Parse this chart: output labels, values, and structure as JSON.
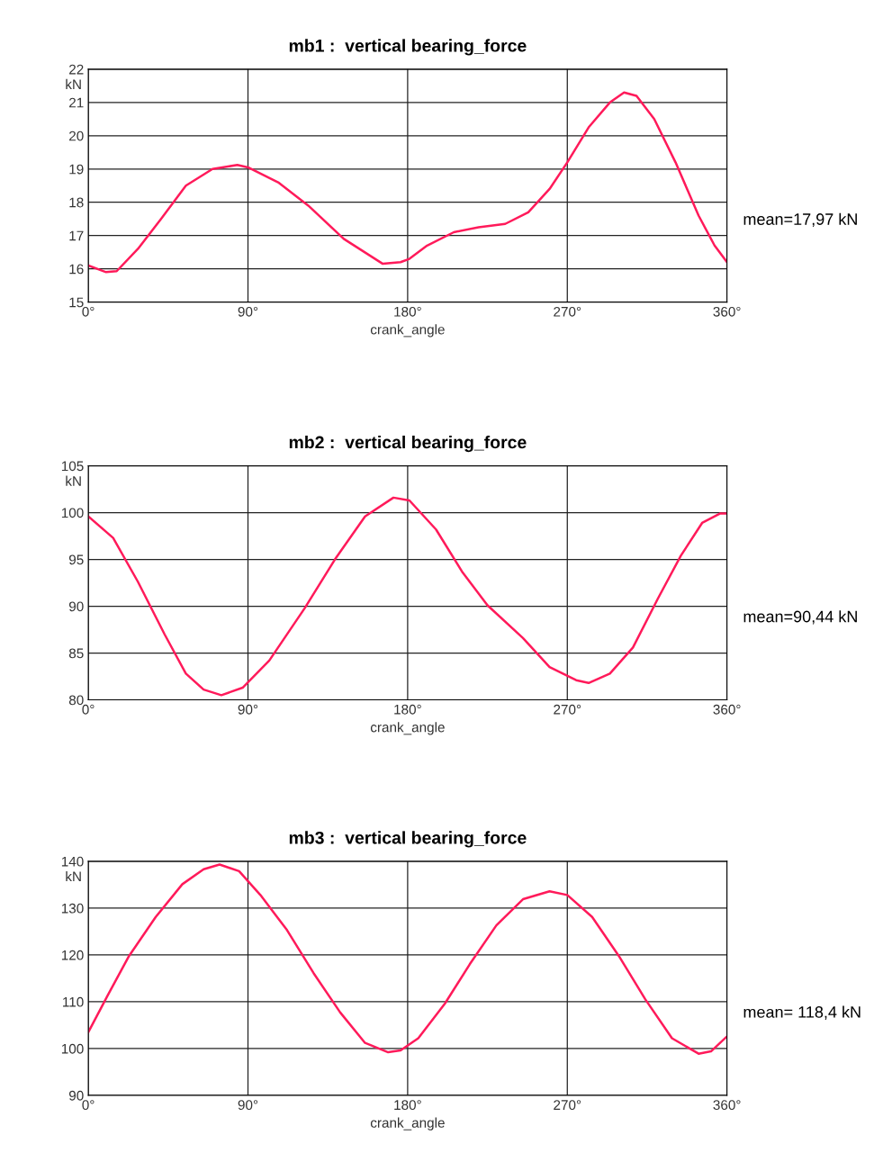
{
  "chart_data": [
    {
      "type": "line",
      "title": "mb1 :  vertical bearing_force",
      "xlabel": "crank_angle",
      "ylabel": "kN",
      "annotations": [
        "mean=17,97 kN"
      ],
      "xlim": [
        0,
        360
      ],
      "xticks": [
        {
          "value": 0,
          "label": "0°"
        },
        {
          "value": 90,
          "label": "90°"
        },
        {
          "value": 180,
          "label": "180°"
        },
        {
          "value": 270,
          "label": "270°"
        },
        {
          "value": 360,
          "label": "360°"
        }
      ],
      "ylim": [
        15,
        22
      ],
      "yticks": [
        15,
        16,
        17,
        18,
        19,
        20,
        21,
        22
      ],
      "grid": true,
      "legend": false,
      "series": [
        {
          "color": "#ff1a5a",
          "x": [
            0,
            10,
            16,
            28,
            41,
            55,
            70,
            84,
            90,
            107,
            124,
            144,
            166,
            176,
            181,
            191,
            206,
            220,
            235,
            248,
            260,
            270,
            282,
            294,
            302,
            309,
            319,
            331,
            344,
            353,
            360
          ],
          "values": [
            16.1,
            15.9,
            15.93,
            16.6,
            17.5,
            18.5,
            19.0,
            19.12,
            19.05,
            18.6,
            17.9,
            16.9,
            16.15,
            16.2,
            16.3,
            16.7,
            17.1,
            17.25,
            17.35,
            17.7,
            18.4,
            19.2,
            20.25,
            21.0,
            21.3,
            21.2,
            20.5,
            19.2,
            17.6,
            16.7,
            16.2
          ]
        }
      ]
    },
    {
      "type": "line",
      "title": "mb2 :  vertical bearing_force",
      "xlabel": "crank_angle",
      "ylabel": "kN",
      "annotations": [
        "mean=90,44 kN"
      ],
      "xlim": [
        0,
        360
      ],
      "xticks": [
        {
          "value": 0,
          "label": "0°"
        },
        {
          "value": 90,
          "label": "90°"
        },
        {
          "value": 180,
          "label": "180°"
        },
        {
          "value": 270,
          "label": "270°"
        },
        {
          "value": 360,
          "label": "360°"
        }
      ],
      "ylim": [
        80,
        105
      ],
      "yticks": [
        80,
        85,
        90,
        95,
        100,
        105
      ],
      "grid": true,
      "legend": false,
      "series": [
        {
          "color": "#ff1a5a",
          "x": [
            0,
            14,
            28,
            43,
            55,
            65,
            75,
            87,
            102,
            122,
            139,
            156,
            172,
            181,
            196,
            211,
            225,
            245,
            260,
            275,
            282,
            294,
            307,
            321,
            334,
            346,
            356,
            360
          ],
          "values": [
            99.6,
            97.3,
            92.6,
            87.0,
            82.8,
            81.1,
            80.5,
            81.3,
            84.2,
            89.8,
            95.0,
            99.6,
            101.6,
            101.3,
            98.2,
            93.6,
            90.1,
            86.6,
            83.5,
            82.1,
            81.8,
            82.8,
            85.6,
            90.8,
            95.4,
            98.9,
            99.9,
            99.9
          ]
        }
      ]
    },
    {
      "type": "line",
      "title": "mb3 :  vertical bearing_force",
      "xlabel": "crank_angle",
      "ylabel": "kN",
      "annotations": [
        "mean= 118,4 kN"
      ],
      "xlim": [
        0,
        360
      ],
      "xticks": [
        {
          "value": 0,
          "label": "0°"
        },
        {
          "value": 90,
          "label": "90°"
        },
        {
          "value": 180,
          "label": "180°"
        },
        {
          "value": 270,
          "label": "270°"
        },
        {
          "value": 360,
          "label": "360°"
        }
      ],
      "ylim": [
        90,
        140
      ],
      "yticks": [
        90,
        100,
        110,
        120,
        130,
        140
      ],
      "grid": true,
      "legend": false,
      "series": [
        {
          "color": "#ff1a5a",
          "x": [
            0,
            11,
            23,
            38,
            53,
            65,
            74,
            85,
            97,
            112,
            127,
            142,
            156,
            169,
            176,
            186,
            201,
            215,
            230,
            245,
            260,
            270,
            284,
            299,
            314,
            329,
            344,
            351,
            360
          ],
          "values": [
            103.5,
            111.4,
            119.8,
            128.1,
            135.1,
            138.3,
            139.3,
            137.9,
            132.8,
            125.3,
            116.1,
            107.7,
            101.2,
            99.2,
            99.6,
            102.2,
            109.6,
            118.0,
            126.3,
            131.9,
            133.6,
            132.8,
            128.1,
            119.8,
            110.5,
            102.2,
            98.9,
            99.4,
            102.6
          ]
        }
      ]
    }
  ]
}
